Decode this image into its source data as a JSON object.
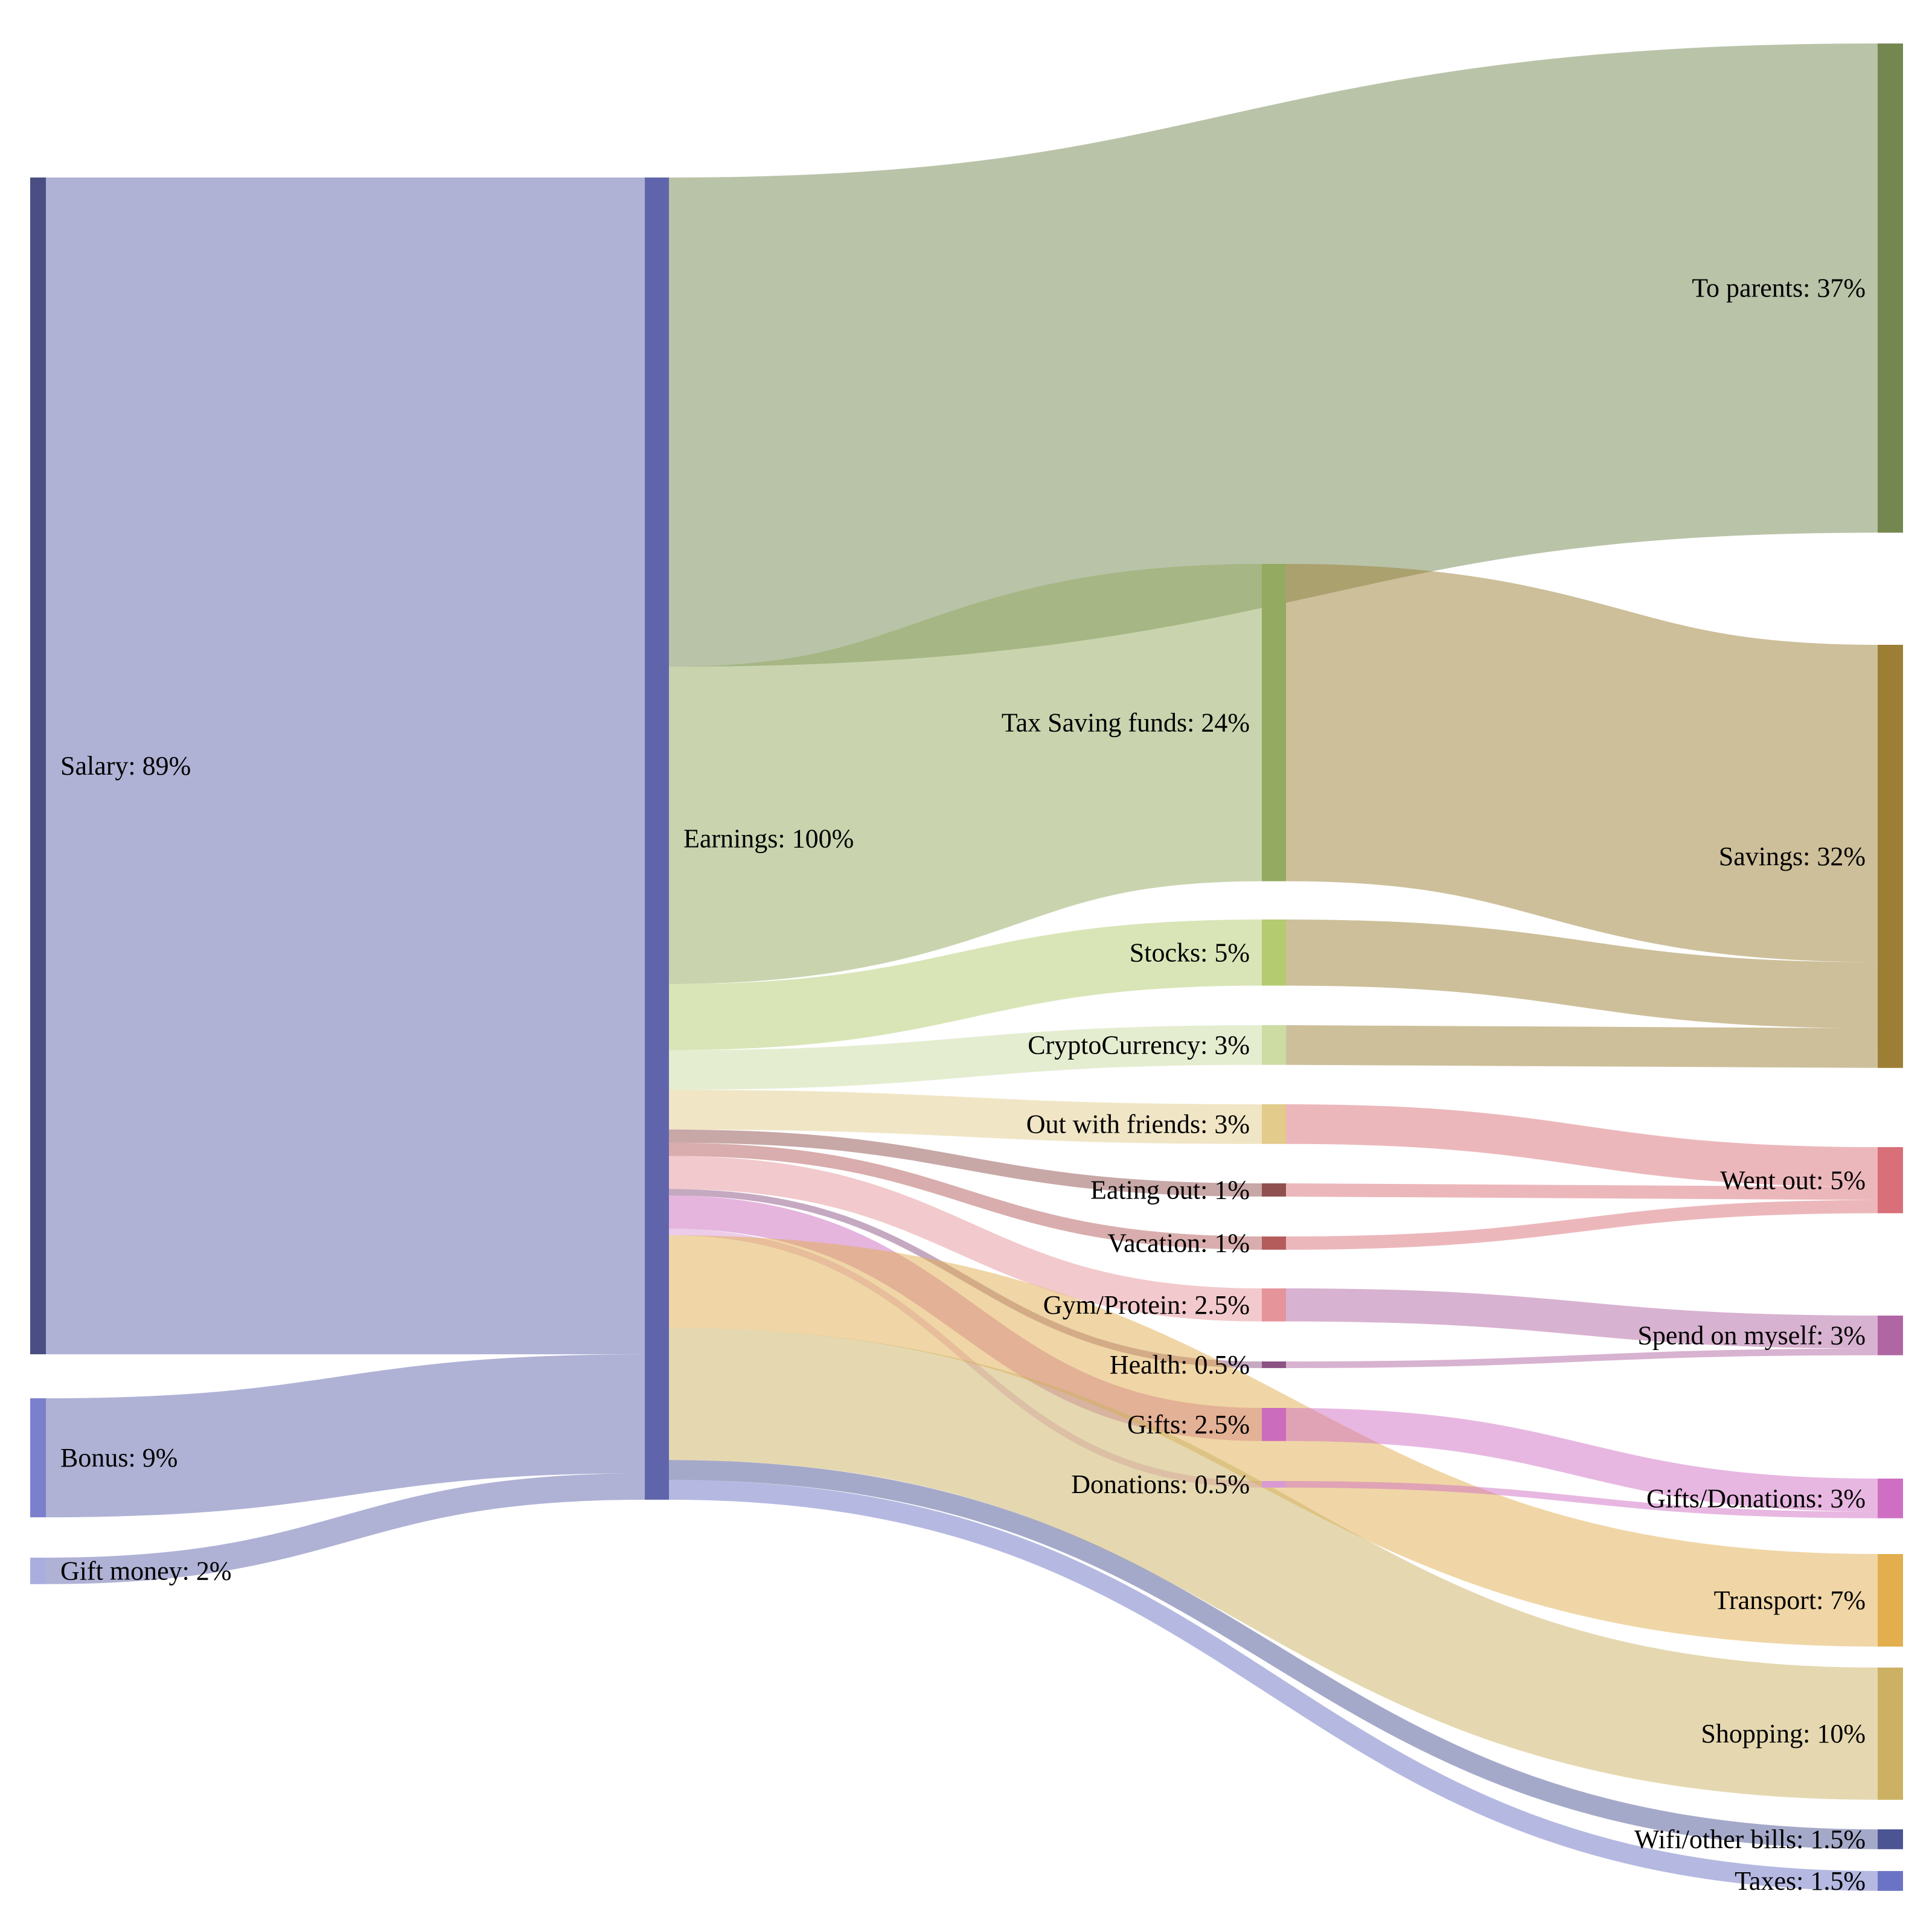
{
  "chart_data": {
    "type": "sankey",
    "title": "",
    "unit": "%",
    "background_color": "#ffffff",
    "link_style": "target-colored, 50% opacity",
    "legend_position": "none",
    "nodes": [
      {
        "id": "salary",
        "label": "Salary: 89%",
        "name": "Salary",
        "value": 89,
        "color": "#4a4e82",
        "column": 0
      },
      {
        "id": "bonus",
        "label": "Bonus: 9%",
        "name": "Bonus",
        "value": 9,
        "color": "#7b80cc",
        "column": 0
      },
      {
        "id": "gift_money",
        "label": "Gift money: 2%",
        "name": "Gift money",
        "value": 2,
        "color": "#a9aede",
        "column": 0
      },
      {
        "id": "earnings",
        "label": "Earnings: 100%",
        "name": "Earnings",
        "value": 100,
        "color": "#6065ab",
        "column": 1
      },
      {
        "id": "tax_saving",
        "label": "Tax Saving funds: 24%",
        "name": "Tax Saving funds",
        "value": 24,
        "color": "#94aa60",
        "column": 2
      },
      {
        "id": "stocks",
        "label": "Stocks: 5%",
        "name": "Stocks",
        "value": 5,
        "color": "#b4cb70",
        "column": 2
      },
      {
        "id": "crypto",
        "label": "CryptoCurrency: 3%",
        "name": "CryptoCurrency",
        "value": 3,
        "color": "#ccdca3",
        "column": 2
      },
      {
        "id": "out_with_friends",
        "label": "Out with friends: 3%",
        "name": "Out with friends",
        "value": 3,
        "color": "#e2cb8b",
        "column": 2
      },
      {
        "id": "eating_out",
        "label": "Eating out: 1%",
        "name": "Eating out",
        "value": 1,
        "color": "#915050",
        "column": 2
      },
      {
        "id": "vacation",
        "label": "Vacation: 1%",
        "name": "Vacation",
        "value": 1,
        "color": "#b45c5c",
        "column": 2
      },
      {
        "id": "gym_protein",
        "label": "Gym/Protein: 2.5%",
        "name": "Gym/Protein",
        "value": 2.5,
        "color": "#e5949a",
        "column": 2
      },
      {
        "id": "health",
        "label": "Health: 0.5%",
        "name": "Health",
        "value": 0.5,
        "color": "#8b5383",
        "column": 2
      },
      {
        "id": "gifts",
        "label": "Gifts: 2.5%",
        "name": "Gifts",
        "value": 2.5,
        "color": "#cc6cbd",
        "column": 2
      },
      {
        "id": "donations",
        "label": "Donations: 0.5%",
        "name": "Donations",
        "value": 0.5,
        "color": "#d99ad4",
        "column": 2
      },
      {
        "id": "to_parents",
        "label": "To parents: 37%",
        "name": "To parents",
        "value": 37,
        "color": "#748751",
        "column": 3
      },
      {
        "id": "savings",
        "label": "Savings: 32%",
        "name": "Savings",
        "value": 32,
        "color": "#9c7f35",
        "column": 3
      },
      {
        "id": "went_out",
        "label": "Went out: 5%",
        "name": "Went out",
        "value": 5,
        "color": "#d96f78",
        "column": 3
      },
      {
        "id": "spend_on_myself",
        "label": "Spend on myself: 3%",
        "name": "Spend on myself",
        "value": 3,
        "color": "#b166a4",
        "column": 3
      },
      {
        "id": "gifts_donations",
        "label": "Gifts/Donations: 3%",
        "name": "Gifts/Donations",
        "value": 3,
        "color": "#cf6fc3",
        "column": 3
      },
      {
        "id": "transport",
        "label": "Transport: 7%",
        "name": "Transport",
        "value": 7,
        "color": "#e2ae4e",
        "column": 3
      },
      {
        "id": "shopping",
        "label": "Shopping: 10%",
        "name": "Shopping",
        "value": 10,
        "color": "#ccb162",
        "column": 3
      },
      {
        "id": "wifi_bills",
        "label": "Wifi/other bills: 1.5%",
        "name": "Wifi/other bills",
        "value": 1.5,
        "color": "#4c5494",
        "column": 3
      },
      {
        "id": "taxes",
        "label": "Taxes: 1.5%",
        "name": "Taxes",
        "value": 1.5,
        "color": "#6b74c4",
        "column": 3
      }
    ],
    "links": [
      {
        "source": "salary",
        "target": "earnings",
        "value": 89
      },
      {
        "source": "bonus",
        "target": "earnings",
        "value": 9
      },
      {
        "source": "gift_money",
        "target": "earnings",
        "value": 2
      },
      {
        "source": "earnings",
        "target": "to_parents",
        "value": 37
      },
      {
        "source": "earnings",
        "target": "tax_saving",
        "value": 24
      },
      {
        "source": "earnings",
        "target": "stocks",
        "value": 5
      },
      {
        "source": "earnings",
        "target": "crypto",
        "value": 3
      },
      {
        "source": "earnings",
        "target": "out_with_friends",
        "value": 3
      },
      {
        "source": "earnings",
        "target": "eating_out",
        "value": 1
      },
      {
        "source": "earnings",
        "target": "vacation",
        "value": 1
      },
      {
        "source": "earnings",
        "target": "gym_protein",
        "value": 2.5
      },
      {
        "source": "earnings",
        "target": "health",
        "value": 0.5
      },
      {
        "source": "earnings",
        "target": "gifts",
        "value": 2.5
      },
      {
        "source": "earnings",
        "target": "donations",
        "value": 0.5
      },
      {
        "source": "earnings",
        "target": "transport",
        "value": 7
      },
      {
        "source": "earnings",
        "target": "shopping",
        "value": 10
      },
      {
        "source": "earnings",
        "target": "wifi_bills",
        "value": 1.5
      },
      {
        "source": "earnings",
        "target": "taxes",
        "value": 1.5
      },
      {
        "source": "tax_saving",
        "target": "savings",
        "value": 24
      },
      {
        "source": "stocks",
        "target": "savings",
        "value": 5
      },
      {
        "source": "crypto",
        "target": "savings",
        "value": 3
      },
      {
        "source": "out_with_friends",
        "target": "went_out",
        "value": 3
      },
      {
        "source": "eating_out",
        "target": "went_out",
        "value": 1
      },
      {
        "source": "vacation",
        "target": "went_out",
        "value": 1
      },
      {
        "source": "gym_protein",
        "target": "spend_on_myself",
        "value": 2.5
      },
      {
        "source": "health",
        "target": "spend_on_myself",
        "value": 0.5
      },
      {
        "source": "gifts",
        "target": "gifts_donations",
        "value": 2.5
      },
      {
        "source": "donations",
        "target": "gifts_donations",
        "value": 0.5
      }
    ]
  }
}
